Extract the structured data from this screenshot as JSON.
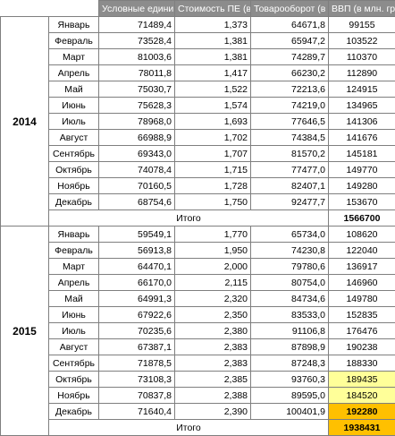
{
  "headers": {
    "units": "Условные единицы (ПЕ)",
    "cost": "Стоимость ПЕ (в млн. грн)",
    "turnover": "Товарооборот (в млн. грн)",
    "gdp": "ВВП (в млн. грн)"
  },
  "years": [
    {
      "year": "2014",
      "rows": [
        {
          "month": "Январь",
          "units": "71489,4",
          "cost": "1,373",
          "turnover": "64671,8",
          "gdp": "99155"
        },
        {
          "month": "Февраль",
          "units": "73528,4",
          "cost": "1,381",
          "turnover": "65947,2",
          "gdp": "103522"
        },
        {
          "month": "Март",
          "units": "81003,6",
          "cost": "1,381",
          "turnover": "74289,7",
          "gdp": "110370"
        },
        {
          "month": "Апрель",
          "units": "78011,8",
          "cost": "1,417",
          "turnover": "66230,2",
          "gdp": "112890"
        },
        {
          "month": "Май",
          "units": "75030,7",
          "cost": "1,522",
          "turnover": "72213,6",
          "gdp": "124915"
        },
        {
          "month": "Июнь",
          "units": "75628,3",
          "cost": "1,574",
          "turnover": "74219,0",
          "gdp": "134965"
        },
        {
          "month": "Июль",
          "units": "78968,0",
          "cost": "1,693",
          "turnover": "77646,5",
          "gdp": "141306"
        },
        {
          "month": "Август",
          "units": "66988,9",
          "cost": "1,702",
          "turnover": "74384,5",
          "gdp": "141676"
        },
        {
          "month": "Сентябрь",
          "units": "69343,0",
          "cost": "1,707",
          "turnover": "81570,2",
          "gdp": "145181"
        },
        {
          "month": "Октябрь",
          "units": "74078,4",
          "cost": "1,715",
          "turnover": "77477,0",
          "gdp": "149770"
        },
        {
          "month": "Ноябрь",
          "units": "70160,5",
          "cost": "1,728",
          "turnover": "82407,1",
          "gdp": "149280"
        },
        {
          "month": "Декабрь",
          "units": "68754,6",
          "cost": "1,750",
          "turnover": "92477,7",
          "gdp": "153670"
        }
      ],
      "total_label": "Итого",
      "total_gdp": "1566700"
    },
    {
      "year": "2015",
      "rows": [
        {
          "month": "Январь",
          "units": "59549,1",
          "cost": "1,770",
          "turnover": "65734,0",
          "gdp": "108620"
        },
        {
          "month": "Февраль",
          "units": "56913,8",
          "cost": "1,950",
          "turnover": "74230,8",
          "gdp": "122040"
        },
        {
          "month": "Март",
          "units": "64470,1",
          "cost": "2,000",
          "turnover": "79780,6",
          "gdp": "136917"
        },
        {
          "month": "Апрель",
          "units": "66170,0",
          "cost": "2,115",
          "turnover": "80754,0",
          "gdp": "146960"
        },
        {
          "month": "Май",
          "units": "64991,3",
          "cost": "2,320",
          "turnover": "84734,6",
          "gdp": "149780"
        },
        {
          "month": "Июнь",
          "units": "67922,6",
          "cost": "2,350",
          "turnover": "83533,0",
          "gdp": "152835"
        },
        {
          "month": "Июль",
          "units": "70235,6",
          "cost": "2,380",
          "turnover": "91106,8",
          "gdp": "176476"
        },
        {
          "month": "Август",
          "units": "67387,1",
          "cost": "2,383",
          "turnover": "87898,9",
          "gdp": "190238"
        },
        {
          "month": "Сентябрь",
          "units": "71878,5",
          "cost": "2,383",
          "turnover": "87248,3",
          "gdp": "188330"
        },
        {
          "month": "Октябрь",
          "units": "73108,3",
          "cost": "2,385",
          "turnover": "93760,3",
          "gdp": "189435"
        },
        {
          "month": "Ноябрь",
          "units": "70837,8",
          "cost": "2,388",
          "turnover": "89595,0",
          "gdp": "184520"
        },
        {
          "month": "Декабрь",
          "units": "71640,4",
          "cost": "2,390",
          "turnover": "100401,9",
          "gdp": "192280"
        }
      ],
      "total_label": "Итого",
      "total_gdp": "1938431"
    }
  ],
  "colors": {
    "header_bg": "#8c8c8c",
    "highlight_yellow": "#ffff99",
    "highlight_orange": "#ffc000"
  }
}
